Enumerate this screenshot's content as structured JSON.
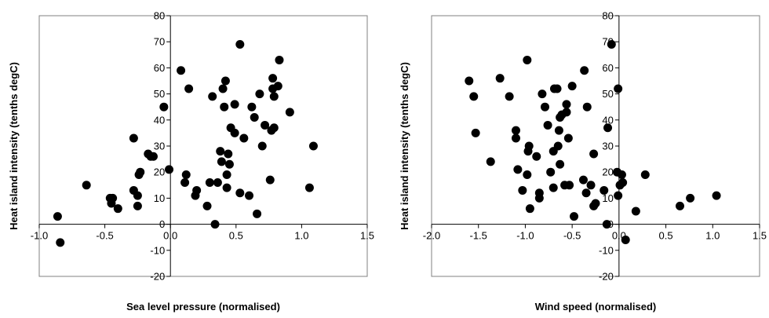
{
  "chart_data": [
    {
      "type": "scatter",
      "xlabel": "Sea level pressure (normalised)",
      "ylabel": "Heat island intensity (tenths degC)",
      "xlim": [
        -1.0,
        1.5
      ],
      "ylim": [
        -20,
        80
      ],
      "xticks": [
        "-1.0",
        "-0.5",
        "0.0",
        "0.5",
        "1.0",
        "1.5"
      ],
      "yticks": [
        "-20",
        "-10",
        "0",
        "10",
        "20",
        "30",
        "40",
        "50",
        "60",
        "70",
        "80"
      ],
      "grid": false,
      "marker_color": "#000000",
      "points": [
        [
          -0.86,
          3
        ],
        [
          -0.84,
          -7
        ],
        [
          -0.64,
          15
        ],
        [
          -0.46,
          10
        ],
        [
          -0.45,
          8
        ],
        [
          -0.44,
          10
        ],
        [
          -0.4,
          6
        ],
        [
          -0.28,
          33
        ],
        [
          -0.28,
          13
        ],
        [
          -0.25,
          11
        ],
        [
          -0.25,
          7
        ],
        [
          -0.24,
          19
        ],
        [
          -0.23,
          20
        ],
        [
          -0.17,
          27
        ],
        [
          -0.15,
          26
        ],
        [
          -0.13,
          26
        ],
        [
          -0.05,
          45
        ],
        [
          -0.01,
          21
        ],
        [
          0.08,
          59
        ],
        [
          0.11,
          16
        ],
        [
          0.12,
          19
        ],
        [
          0.14,
          52
        ],
        [
          0.19,
          11
        ],
        [
          0.2,
          13
        ],
        [
          0.28,
          7
        ],
        [
          0.3,
          16
        ],
        [
          0.32,
          49
        ],
        [
          0.34,
          0
        ],
        [
          0.36,
          16
        ],
        [
          0.38,
          28
        ],
        [
          0.39,
          24
        ],
        [
          0.4,
          52
        ],
        [
          0.41,
          45
        ],
        [
          0.42,
          55
        ],
        [
          0.43,
          14
        ],
        [
          0.43,
          19
        ],
        [
          0.44,
          27
        ],
        [
          0.45,
          23
        ],
        [
          0.46,
          37
        ],
        [
          0.49,
          46
        ],
        [
          0.49,
          35
        ],
        [
          0.53,
          69
        ],
        [
          0.53,
          12
        ],
        [
          0.56,
          33
        ],
        [
          0.6,
          11
        ],
        [
          0.62,
          45
        ],
        [
          0.64,
          41
        ],
        [
          0.66,
          4
        ],
        [
          0.68,
          50
        ],
        [
          0.7,
          30
        ],
        [
          0.72,
          38
        ],
        [
          0.76,
          17
        ],
        [
          0.77,
          36
        ],
        [
          0.78,
          52
        ],
        [
          0.78,
          56
        ],
        [
          0.79,
          49
        ],
        [
          0.79,
          37
        ],
        [
          0.82,
          53
        ],
        [
          0.83,
          63
        ],
        [
          0.91,
          43
        ],
        [
          1.06,
          14
        ],
        [
          1.09,
          30
        ]
      ]
    },
    {
      "type": "scatter",
      "xlabel": "Wind speed (normalised)",
      "ylabel": "Heat island intensity (tenths degC)",
      "xlim": [
        -2.0,
        1.5
      ],
      "ylim": [
        -20,
        80
      ],
      "xticks": [
        "-2.0",
        "-1.5",
        "-1.0",
        "-0.5",
        "0.0",
        "0.5",
        "1.0",
        "1.5"
      ],
      "yticks": [
        "-20",
        "-10",
        "0",
        "10",
        "20",
        "30",
        "40",
        "50",
        "60",
        "70",
        "80"
      ],
      "grid": false,
      "marker_color": "#000000",
      "points": [
        [
          -1.6,
          55
        ],
        [
          -1.55,
          49
        ],
        [
          -1.53,
          35
        ],
        [
          -1.37,
          24
        ],
        [
          -1.27,
          56
        ],
        [
          -1.17,
          49
        ],
        [
          -1.1,
          36
        ],
        [
          -1.1,
          33
        ],
        [
          -1.08,
          21
        ],
        [
          -1.03,
          13
        ],
        [
          -0.98,
          63
        ],
        [
          -0.98,
          19
        ],
        [
          -0.97,
          28
        ],
        [
          -0.96,
          30
        ],
        [
          -0.95,
          6
        ],
        [
          -0.88,
          26
        ],
        [
          -0.85,
          10
        ],
        [
          -0.85,
          12
        ],
        [
          -0.82,
          50
        ],
        [
          -0.79,
          45
        ],
        [
          -0.76,
          38
        ],
        [
          -0.73,
          20
        ],
        [
          -0.7,
          14
        ],
        [
          -0.7,
          28
        ],
        [
          -0.69,
          52
        ],
        [
          -0.66,
          52
        ],
        [
          -0.65,
          30
        ],
        [
          -0.64,
          36
        ],
        [
          -0.63,
          41
        ],
        [
          -0.63,
          23
        ],
        [
          -0.61,
          42
        ],
        [
          -0.58,
          15
        ],
        [
          -0.56,
          46
        ],
        [
          -0.56,
          43
        ],
        [
          -0.54,
          33
        ],
        [
          -0.53,
          15
        ],
        [
          -0.5,
          53
        ],
        [
          -0.48,
          3
        ],
        [
          -0.38,
          17
        ],
        [
          -0.37,
          59
        ],
        [
          -0.35,
          12
        ],
        [
          -0.34,
          45
        ],
        [
          -0.3,
          15
        ],
        [
          -0.27,
          7
        ],
        [
          -0.27,
          27
        ],
        [
          -0.25,
          8
        ],
        [
          -0.16,
          13
        ],
        [
          -0.13,
          0
        ],
        [
          -0.12,
          37
        ],
        [
          -0.08,
          69
        ],
        [
          -0.02,
          20
        ],
        [
          -0.01,
          52
        ],
        [
          -0.01,
          11
        ],
        [
          0.01,
          15
        ],
        [
          0.03,
          19
        ],
        [
          0.04,
          16
        ],
        [
          0.07,
          -6
        ],
        [
          0.18,
          5
        ],
        [
          0.28,
          19
        ],
        [
          0.65,
          7
        ],
        [
          0.76,
          10
        ],
        [
          1.04,
          11
        ]
      ]
    }
  ]
}
